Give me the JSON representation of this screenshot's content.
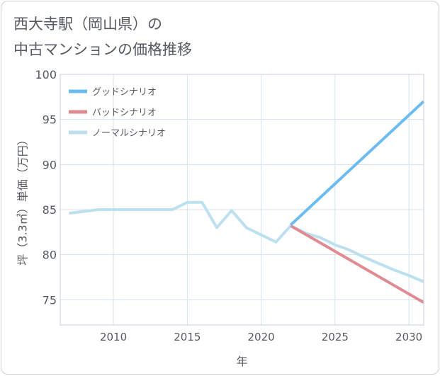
{
  "title": {
    "line1": "西大寺駅（岡山県）の",
    "line2": "中古マンションの価格推移"
  },
  "chart_data": {
    "type": "line",
    "xlabel": "年",
    "ylabel": "坪（3.3㎡）単価（万円）",
    "xlim": [
      2006.4,
      2031
    ],
    "ylim": [
      72.2,
      100
    ],
    "xticks": [
      2010,
      2015,
      2020,
      2025,
      2030
    ],
    "yticks": [
      75,
      80,
      85,
      90,
      95,
      100
    ],
    "grid": true,
    "legend_position": "top-left",
    "series": [
      {
        "name": "グッドシナリオ",
        "color": "#6bbcf0",
        "x": [
          2022,
          2031
        ],
        "y": [
          83.3,
          97.0
        ]
      },
      {
        "name": "バッドシナリオ",
        "color": "#e08a92",
        "x": [
          2022,
          2031
        ],
        "y": [
          83.2,
          74.7
        ]
      },
      {
        "name": "ノーマルシナリオ",
        "color": "#bde0ef",
        "x": [
          2007,
          2009,
          2010,
          2011,
          2012,
          2013,
          2014,
          2015,
          2016,
          2017,
          2018,
          2019,
          2020,
          2021,
          2022,
          2023,
          2024,
          2025,
          2026,
          2027,
          2028,
          2029,
          2030,
          2031
        ],
        "y": [
          84.6,
          85.0,
          85.0,
          85.0,
          85.0,
          85.0,
          85.0,
          85.8,
          85.8,
          83.0,
          84.9,
          83.0,
          82.2,
          81.4,
          83.2,
          82.4,
          81.9,
          81.1,
          80.5,
          79.7,
          79.0,
          78.3,
          77.7,
          77.0
        ]
      }
    ]
  }
}
